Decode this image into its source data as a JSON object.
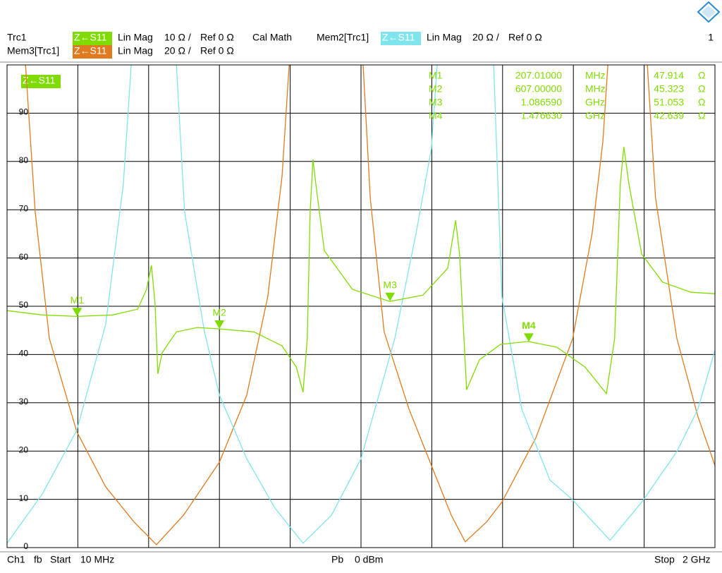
{
  "chart_data": {
    "type": "line",
    "param": "Z←S11",
    "cal": "Cal Math",
    "channel_no": "1",
    "ylim": [
      0,
      100
    ],
    "yticks": [
      0,
      10,
      20,
      30,
      40,
      50,
      60,
      70,
      80,
      90
    ],
    "xlim": [
      10,
      2000
    ],
    "xgrid_divisions": 10,
    "grid": true,
    "series": [
      {
        "name": "Trc1",
        "color": "#80dc00",
        "param": "Z←S11",
        "format": "Lin Mag",
        "scale": "10 Ω /",
        "ref": "Ref 0 Ω",
        "x": [
          10,
          109,
          206,
          307,
          377,
          402,
          416,
          426,
          434,
          446,
          486,
          545,
          607,
          704,
          783,
          823,
          842,
          854,
          862,
          870,
          878,
          902,
          981,
          1086,
          1179,
          1249,
          1271,
          1282,
          1302,
          1338,
          1397,
          1475,
          1556,
          1635,
          1695,
          1718,
          1734,
          1744,
          1758,
          1794,
          1853,
          1933,
          2000
        ],
        "values": [
          49.1,
          48.2,
          47.9,
          48.2,
          49.4,
          53.5,
          58.5,
          50.6,
          36.0,
          40.4,
          44.7,
          45.6,
          45.3,
          44.7,
          41.8,
          37.4,
          32.2,
          43.3,
          69.6,
          80.4,
          75.4,
          61.5,
          53.5,
          51.0,
          52.3,
          57.9,
          67.8,
          60.8,
          32.7,
          38.9,
          42.1,
          42.7,
          41.5,
          37.4,
          31.9,
          43.3,
          75.4,
          83.0,
          75.4,
          60.8,
          55.0,
          52.9,
          52.6
        ]
      },
      {
        "name": "Mem2[Trc1]",
        "color": "#80e4ec",
        "param": "Z←S11",
        "format": "Lin Mag",
        "scale": "20 Ω /",
        "ref": "Ref 0 Ω",
        "x": [
          10,
          109,
          206,
          287,
          337,
          359,
          420,
          486,
          509,
          565,
          607,
          684,
          763,
          842,
          922,
          1005,
          1100,
          1160,
          1203,
          1219,
          1300,
          1378,
          1401,
          1457,
          1536,
          1600,
          1705,
          1794,
          1893,
          1952,
          2000
        ],
        "values": [
          0.9,
          11.1,
          24.3,
          46.2,
          75.4,
          100,
          null,
          100,
          69.6,
          44.7,
          31.6,
          18.4,
          8.2,
          0.9,
          6.7,
          18.4,
          43.3,
          65.2,
          82.7,
          100,
          null,
          100,
          52.0,
          28.7,
          14.0,
          9.9,
          1.5,
          9.4,
          19.9,
          28.7,
          40.9
        ]
      },
      {
        "name": "Mem3[Trc1]",
        "color": "#e07a1e",
        "param": "Z←S11",
        "format": "Lin Mag",
        "scale": "20 Ω /",
        "ref": "Ref 0 Ω",
        "x": [
          62,
          89,
          129,
          206,
          287,
          367,
          430,
          506,
          607,
          684,
          743,
          783,
          803,
          907,
          1011,
          1031,
          1070,
          1140,
          1203,
          1259,
          1298,
          1358,
          1401,
          1497,
          1600,
          1655,
          1685,
          1699,
          1755,
          1810,
          1833,
          1893,
          1952,
          2000
        ],
        "values": [
          100,
          69.6,
          43.3,
          24.0,
          12.6,
          5.3,
          0.6,
          6.7,
          17.7,
          31.6,
          52.0,
          76.9,
          100,
          null,
          100,
          72.5,
          44.7,
          28.7,
          17.0,
          6.7,
          1.2,
          5.3,
          9.4,
          22.8,
          43.3,
          65.2,
          84.2,
          100,
          null,
          100,
          72.5,
          43.3,
          27.2,
          17.0
        ]
      }
    ],
    "markers": [
      {
        "name": "M1",
        "x": 207.01,
        "value": 47.914,
        "x_label": "207.01000",
        "x_unit": "MHz",
        "value_label": "47.914",
        "unit": "Ω"
      },
      {
        "name": "M2",
        "x": 607.0,
        "value": 45.323,
        "x_label": "607.00000",
        "x_unit": "MHz",
        "value_label": "45.323",
        "unit": "Ω"
      },
      {
        "name": "M3",
        "x": 1086.59,
        "value": 51.053,
        "x_label": "1.086590",
        "x_unit": "GHz",
        "value_label": "51.053",
        "unit": "Ω"
      },
      {
        "name": "M4",
        "x": 1476.63,
        "value": 42.639,
        "x_label": "1.476630",
        "x_unit": "GHz",
        "value_label": "42.639",
        "unit": "Ω"
      }
    ]
  },
  "footer": {
    "channel": "Ch1",
    "mode": "fb",
    "start": "Start",
    "start_value": "10 MHz",
    "power": "Pb",
    "power_value": "0 dBm",
    "stop": "Stop",
    "stop_value": "2 GHz"
  }
}
